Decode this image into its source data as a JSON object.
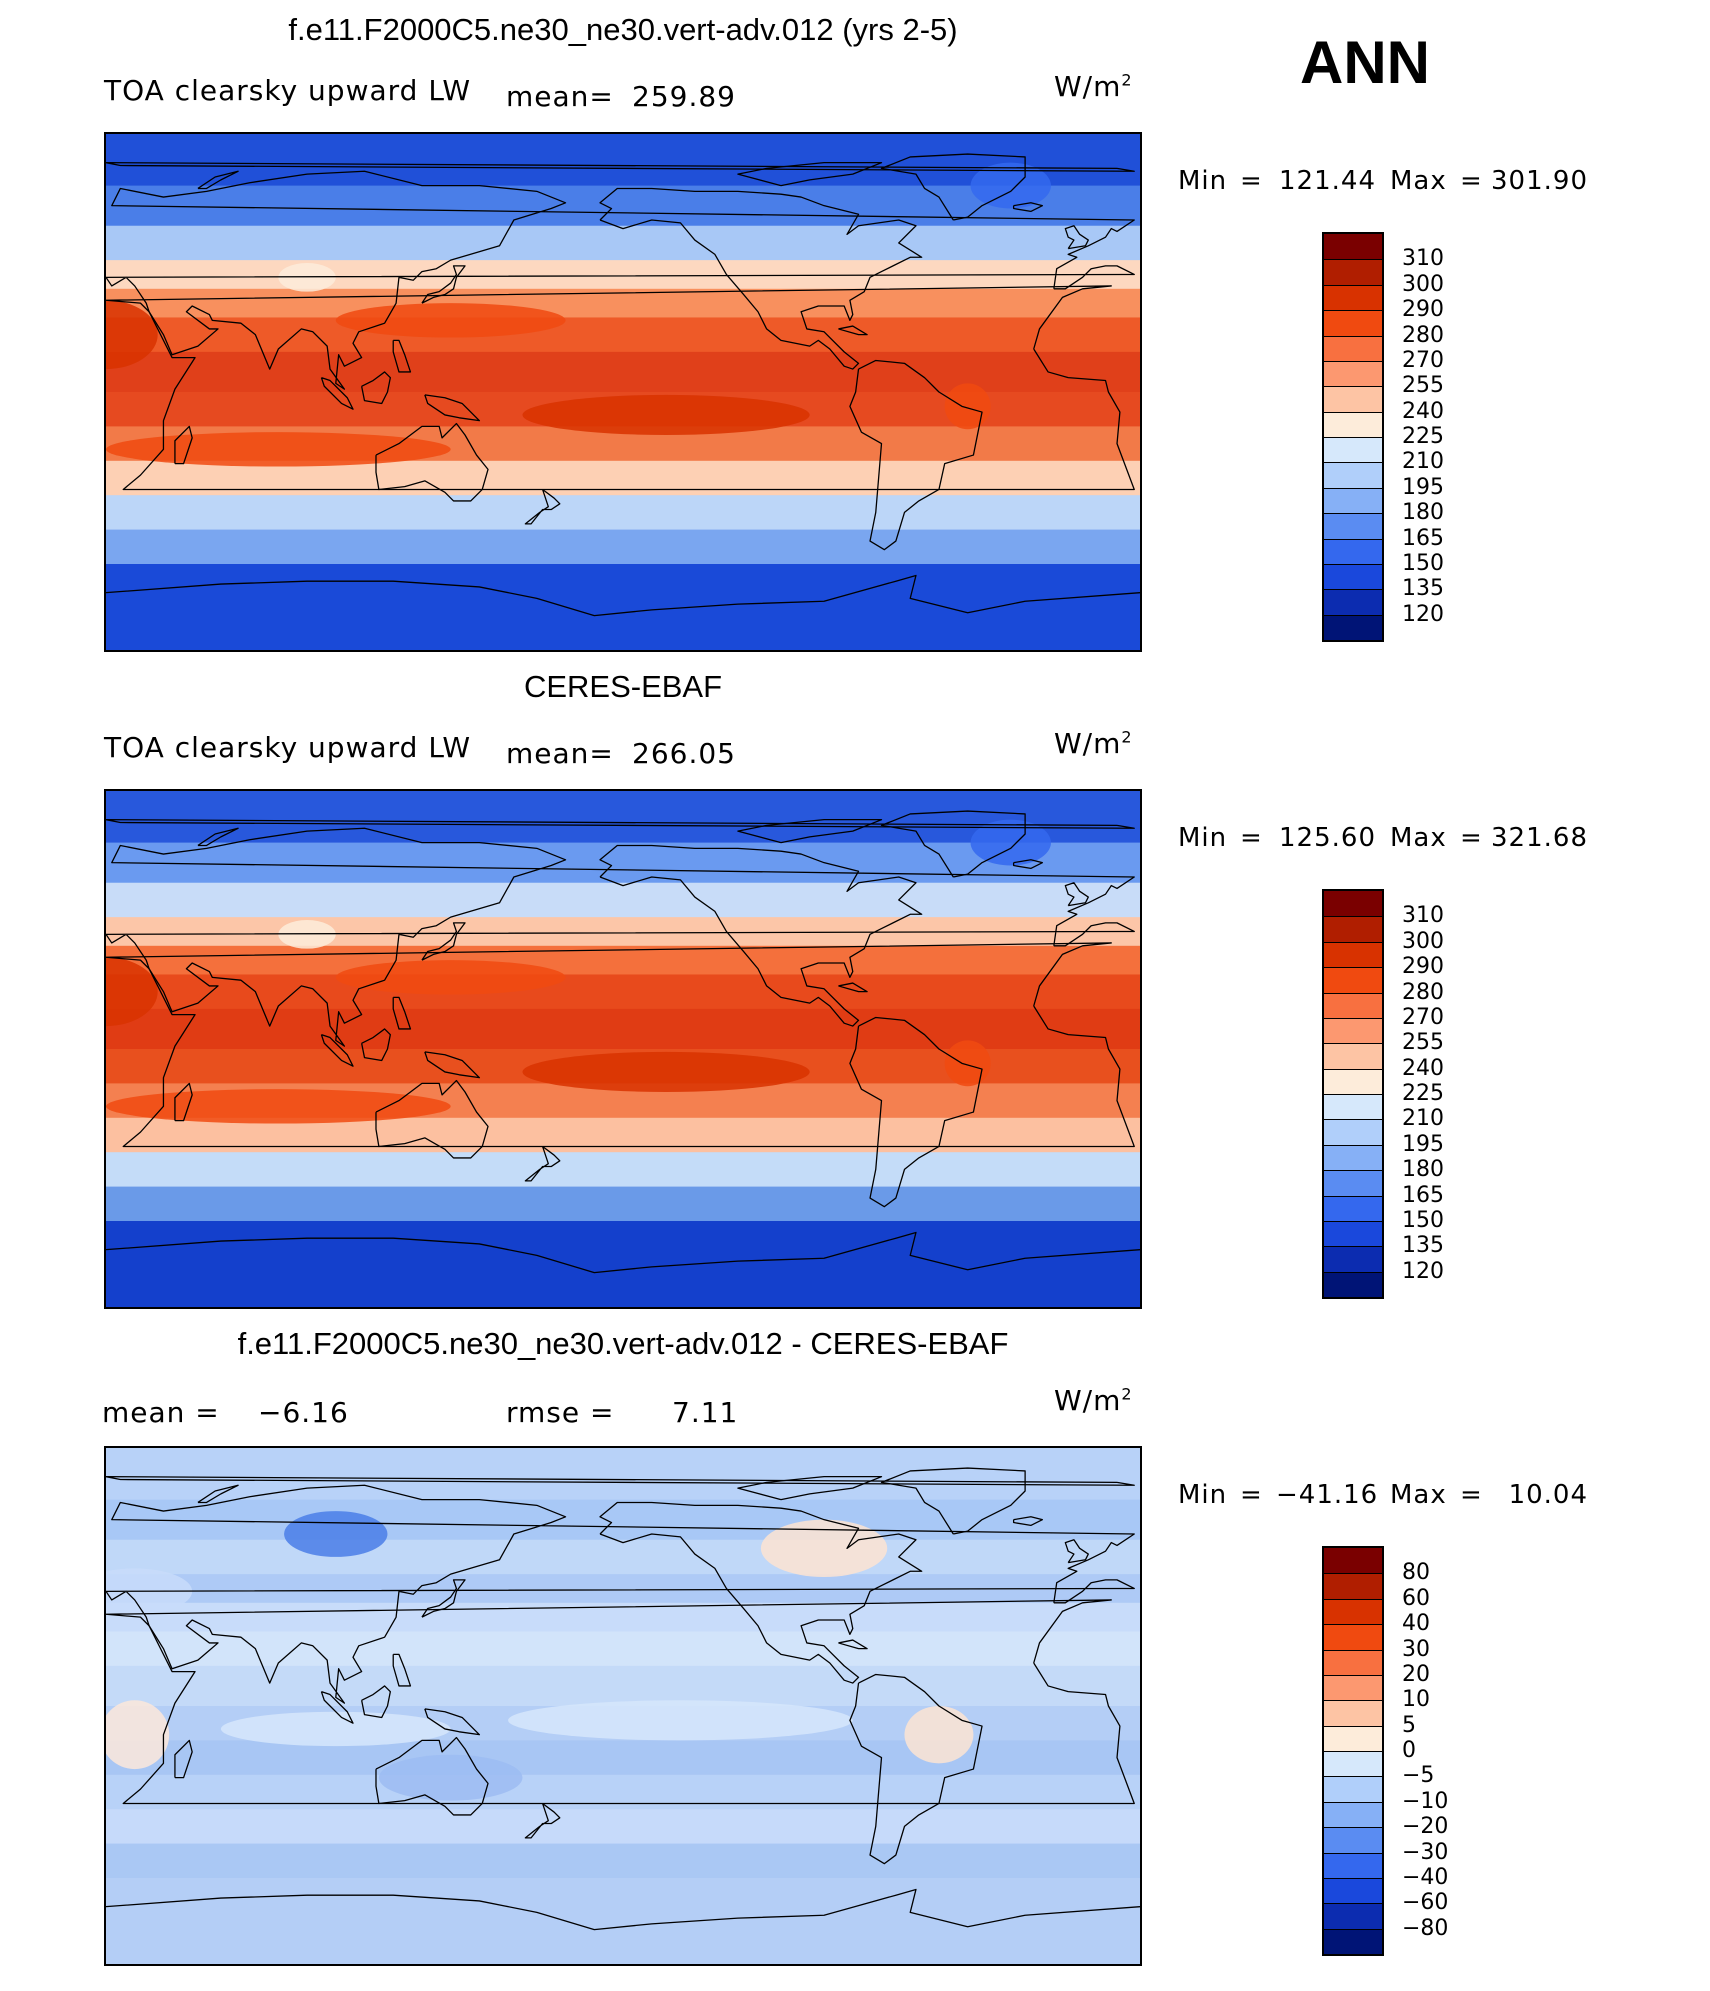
{
  "season": "ANN",
  "units_base": "W/m",
  "units_exp": "2",
  "panels": [
    {
      "title": "f.e11.F2000C5.ne30_ne30.vert-adv.012 (yrs 2-5)",
      "variable": "TOA clearsky upward LW",
      "stat1_label": "mean=",
      "stat1_value": "259.89",
      "stat2_label": "",
      "stat2_value": "",
      "min_label": "Min",
      "min_value": "121.44",
      "max_label": "Max",
      "max_value": "301.90",
      "levels": [
        "310",
        "300",
        "290",
        "280",
        "270",
        "255",
        "240",
        "225",
        "210",
        "195",
        "180",
        "165",
        "150",
        "135",
        "120"
      ],
      "colors": [
        "#7a0000",
        "#b01e00",
        "#d83200",
        "#f04a10",
        "#f87040",
        "#fc9870",
        "#fdc4a4",
        "#fdecda",
        "#d6e8fb",
        "#b0cffa",
        "#86b0f6",
        "#5a8cf2",
        "#3468ee",
        "#1a48dc",
        "#0c2cb0",
        "#001476"
      ],
      "map_type": "field",
      "field_zone_colors": [
        "#2050d8",
        "#4a7ee8",
        "#a8c8f6",
        "#fdd8c0",
        "#f8905e",
        "#ee5a28",
        "#e0401a",
        "#e64a20",
        "#f27a48",
        "#fdd0b4",
        "#bcd6f8",
        "#7aa6f0",
        "#1a4ad8"
      ],
      "chart_data": {
        "type": "heatmap",
        "title": "f.e11.F2000C5.ne30_ne30.vert-adv.012 (yrs 2-5)",
        "zlabel": "TOA clearsky upward LW",
        "units": "W/m2",
        "mean": 259.89,
        "min": 121.44,
        "max": 301.9,
        "levels": [
          120,
          135,
          150,
          165,
          180,
          195,
          210,
          225,
          240,
          255,
          270,
          280,
          290,
          300,
          310
        ]
      }
    },
    {
      "title": "CERES-EBAF",
      "variable": "TOA clearsky upward LW",
      "stat1_label": "mean=",
      "stat1_value": "266.05",
      "stat2_label": "",
      "stat2_value": "",
      "min_label": "Min",
      "min_value": "125.60",
      "max_label": "Max",
      "max_value": "321.68",
      "levels": [
        "310",
        "300",
        "290",
        "280",
        "270",
        "255",
        "240",
        "225",
        "210",
        "195",
        "180",
        "165",
        "150",
        "135",
        "120"
      ],
      "colors": [
        "#7a0000",
        "#b01e00",
        "#d83200",
        "#f04a10",
        "#f87040",
        "#fc9870",
        "#fdc4a4",
        "#fdecda",
        "#d6e8fb",
        "#b0cffa",
        "#86b0f6",
        "#5a8cf2",
        "#3468ee",
        "#1a48dc",
        "#0c2cb0",
        "#001476"
      ],
      "map_type": "field",
      "field_zone_colors": [
        "#2858dc",
        "#6a9af0",
        "#c8dcf8",
        "#fcc6a8",
        "#f4703c",
        "#e84a1c",
        "#e03c14",
        "#e8501e",
        "#f48050",
        "#fcc0a0",
        "#c4dcf8",
        "#6a9ae8",
        "#1440cc"
      ],
      "chart_data": {
        "type": "heatmap",
        "title": "CERES-EBAF",
        "zlabel": "TOA clearsky upward LW",
        "units": "W/m2",
        "mean": 266.05,
        "min": 125.6,
        "max": 321.68,
        "levels": [
          120,
          135,
          150,
          165,
          180,
          195,
          210,
          225,
          240,
          255,
          270,
          280,
          290,
          300,
          310
        ]
      }
    },
    {
      "title": "f.e11.F2000C5.ne30_ne30.vert-adv.012 - CERES-EBAF",
      "variable": "",
      "stat1_label": "mean =",
      "stat1_value": "−6.16",
      "stat2_label": "rmse =",
      "stat2_value": "7.11",
      "min_label": "Min",
      "min_value": "−41.16",
      "max_label": "Max",
      "max_value": "10.04",
      "levels": [
        "80",
        "60",
        "40",
        "30",
        "20",
        "10",
        "5",
        "0",
        "−5",
        "−10",
        "−20",
        "−30",
        "−40",
        "−60",
        "−80"
      ],
      "colors": [
        "#7a0000",
        "#b01e00",
        "#d83200",
        "#f04a10",
        "#f87040",
        "#fc9870",
        "#fdc4a4",
        "#fdecda",
        "#d6e8fb",
        "#b0cffa",
        "#86b0f6",
        "#5a8cf2",
        "#3468ee",
        "#1a48dc",
        "#0c2cb0",
        "#001476"
      ],
      "map_type": "diff",
      "field_zone_colors": [
        "#b8d2f8",
        "#a8c8f6",
        "#c0d8f8",
        "#aecaf6",
        "#c8dcfa",
        "#d2e4fa",
        "#c4daf8",
        "#b4cef6",
        "#a8c6f4",
        "#b8d2f8",
        "#c6dafa",
        "#aac8f4",
        "#b4cef6"
      ],
      "chart_data": {
        "type": "heatmap",
        "title": "f.e11.F2000C5.ne30_ne30.vert-adv.012 - CERES-EBAF",
        "units": "W/m2",
        "mean": -6.16,
        "rmse": 7.11,
        "min": -41.16,
        "max": 10.04,
        "levels": [
          -80,
          -60,
          -40,
          -30,
          -20,
          -10,
          -5,
          0,
          5,
          10,
          20,
          30,
          40,
          60,
          80
        ]
      }
    }
  ]
}
